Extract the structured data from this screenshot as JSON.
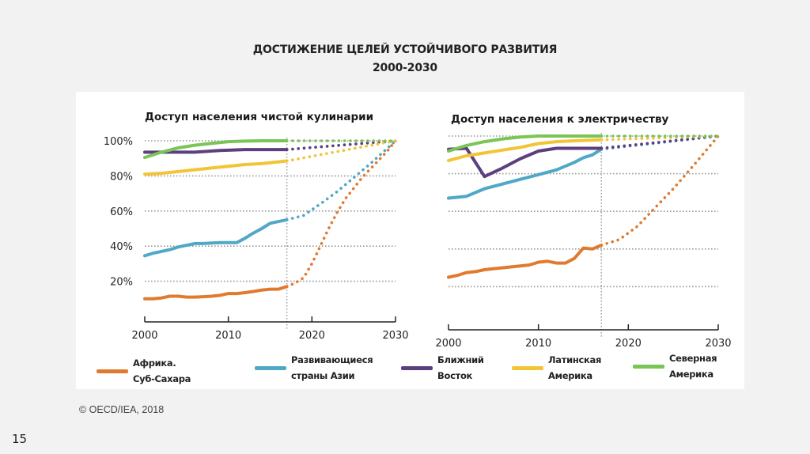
{
  "slide": {
    "title_line1": "ДОСТИЖЕНИЕ ЦЕЛЕЙ УСТОЙЧИВОГО РАЗВИТИЯ",
    "title_line2": "2000-2030",
    "copyright": "© OECD/IEA, 2018",
    "slide_number": "15"
  },
  "legend": [
    {
      "key": "ssa",
      "label": "Африка.\nСуб-Сахара",
      "color": "#e07a30"
    },
    {
      "key": "asia",
      "label": "Развивающиеся\nстраны Азии",
      "color": "#4fa8c6"
    },
    {
      "key": "me",
      "label": "Ближний\nВосток",
      "color": "#5b3f7e"
    },
    {
      "key": "latam",
      "label": "Латинская\nАмерика",
      "color": "#f2c438"
    },
    {
      "key": "na",
      "label": "Северная\nАмерика",
      "color": "#7ac555"
    }
  ],
  "chart_data": [
    {
      "type": "line",
      "title": "Доступ населения чистой кулинарии",
      "xlabel": "",
      "ylabel": "",
      "xlim": [
        2000,
        2030
      ],
      "ylim": [
        0,
        100
      ],
      "x_ticks": [
        "2000",
        "2010",
        "2020",
        "2030"
      ],
      "y_ticks": [
        "20%",
        "40%",
        "60%",
        "80%",
        "100%"
      ],
      "y_tick_values": [
        20,
        40,
        60,
        80,
        100
      ],
      "grid": "horizontal dotted",
      "projection_start": 2017,
      "series": [
        {
          "name": "Африка. Суб-Сахара",
          "color": "#e07a30",
          "x": [
            2000,
            2001,
            2002,
            2003,
            2004,
            2005,
            2006,
            2007,
            2008,
            2009,
            2010,
            2011,
            2012,
            2013,
            2014,
            2015,
            2016,
            2017
          ],
          "values": [
            10,
            10,
            10.5,
            11.5,
            11.5,
            11,
            11,
            11.2,
            11.5,
            12,
            13,
            13,
            13.5,
            14.2,
            15,
            15.5,
            15.5,
            17
          ],
          "projection_x": [
            2017,
            2018,
            2019,
            2020,
            2021,
            2022,
            2023,
            2024,
            2025,
            2026,
            2027,
            2028,
            2029,
            2030
          ],
          "projection": [
            17,
            19,
            22,
            30,
            40,
            50,
            59,
            67,
            73,
            79,
            84,
            89,
            94,
            100
          ]
        },
        {
          "name": "Развивающиеся страны Азии",
          "color": "#4fa8c6",
          "x": [
            2000,
            2001,
            2002,
            2003,
            2004,
            2005,
            2006,
            2007,
            2008,
            2009,
            2010,
            2011,
            2012,
            2013,
            2014,
            2015,
            2016,
            2017
          ],
          "values": [
            34.5,
            36,
            37,
            38,
            39.5,
            40.5,
            41.5,
            41.5,
            41.8,
            42,
            42,
            42,
            44.5,
            47.5,
            50,
            53,
            54,
            55
          ],
          "projection_x": [
            2017,
            2019,
            2021,
            2023,
            2025,
            2027,
            2030
          ],
          "projection": [
            55,
            57.5,
            64,
            71,
            79,
            87,
            100
          ]
        },
        {
          "name": "Ближний Восток",
          "color": "#5b3f7e",
          "x": [
            2000,
            2003,
            2006,
            2009,
            2012,
            2015,
            2017
          ],
          "values": [
            93.5,
            93.5,
            93.5,
            94.5,
            95,
            95,
            95
          ],
          "projection_x": [
            2017,
            2030
          ],
          "projection": [
            95,
            100
          ]
        },
        {
          "name": "Латинская Америка",
          "color": "#f2c438",
          "x": [
            2000,
            2002,
            2004,
            2006,
            2008,
            2010,
            2012,
            2014,
            2016,
            2017
          ],
          "values": [
            81,
            81.5,
            82.5,
            83.5,
            84.5,
            85.5,
            86.5,
            87,
            88,
            88.5
          ],
          "projection_x": [
            2017,
            2030
          ],
          "projection": [
            88.5,
            100
          ]
        },
        {
          "name": "Северная Америка",
          "color": "#7ac555",
          "x": [
            2000,
            2002,
            2004,
            2006,
            2008,
            2010,
            2012,
            2014,
            2017
          ],
          "values": [
            90.5,
            93.5,
            96,
            97.5,
            98.5,
            99.5,
            99.8,
            100,
            100
          ],
          "projection_x": [
            2017,
            2030
          ],
          "projection": [
            100,
            100
          ]
        }
      ]
    },
    {
      "type": "line",
      "title": "Доступ населения к электричеству",
      "xlabel": "",
      "ylabel": "",
      "xlim": [
        2000,
        2030
      ],
      "ylim": [
        0,
        100
      ],
      "x_ticks": [
        "2000",
        "2010",
        "2020",
        "2030"
      ],
      "y_tick_values": [
        20,
        40,
        60,
        80,
        100
      ],
      "grid": "horizontal dotted",
      "projection_start": 2017,
      "series": [
        {
          "name": "Африка. Суб-Сахара",
          "color": "#e07a30",
          "x": [
            2000,
            2001,
            2002,
            2003,
            2004,
            2005,
            2006,
            2007,
            2008,
            2009,
            2010,
            2011,
            2012,
            2013,
            2014,
            2015,
            2016,
            2017
          ],
          "values": [
            25,
            26,
            27.5,
            28,
            29,
            29.5,
            30,
            30.5,
            31,
            31.5,
            33,
            33.5,
            32.5,
            32.5,
            35,
            40.5,
            40,
            42
          ],
          "projection_x": [
            2017,
            2019,
            2021,
            2023,
            2025,
            2027,
            2030
          ],
          "projection": [
            42,
            45,
            52,
            62,
            72,
            83,
            100
          ]
        },
        {
          "name": "Развивающиеся страны Азии",
          "color": "#4fa8c6",
          "x": [
            2000,
            2002,
            2004,
            2006,
            2008,
            2010,
            2012,
            2014,
            2015,
            2016,
            2017
          ],
          "values": [
            67,
            68,
            72,
            74.5,
            77,
            79.5,
            82,
            86,
            88.5,
            90,
            93
          ],
          "projection_x": [
            2017,
            2030
          ],
          "projection": [
            93,
            100
          ]
        },
        {
          "name": "Ближний Восток",
          "color": "#5b3f7e",
          "x": [
            2000,
            2002,
            2004,
            2006,
            2008,
            2010,
            2012,
            2014,
            2017
          ],
          "values": [
            93,
            93.5,
            78.5,
            83,
            88,
            92,
            93.5,
            93.5,
            93.5
          ],
          "projection_x": [
            2017,
            2030
          ],
          "projection": [
            93.5,
            100
          ]
        },
        {
          "name": "Латинская Америка",
          "color": "#f2c438",
          "x": [
            2000,
            2002,
            2004,
            2006,
            2008,
            2010,
            2012,
            2014,
            2017
          ],
          "values": [
            87,
            89.5,
            91,
            92.5,
            94,
            96,
            97,
            97.5,
            98
          ],
          "projection_x": [
            2017,
            2030
          ],
          "projection": [
            98,
            100
          ]
        },
        {
          "name": "Северная Америка",
          "color": "#7ac555",
          "x": [
            2000,
            2002,
            2004,
            2006,
            2008,
            2010,
            2012,
            2014,
            2017
          ],
          "values": [
            92,
            95,
            97,
            98.5,
            99.5,
            100,
            100,
            100,
            100
          ],
          "projection_x": [
            2017,
            2030
          ],
          "projection": [
            100,
            100
          ]
        }
      ]
    }
  ]
}
